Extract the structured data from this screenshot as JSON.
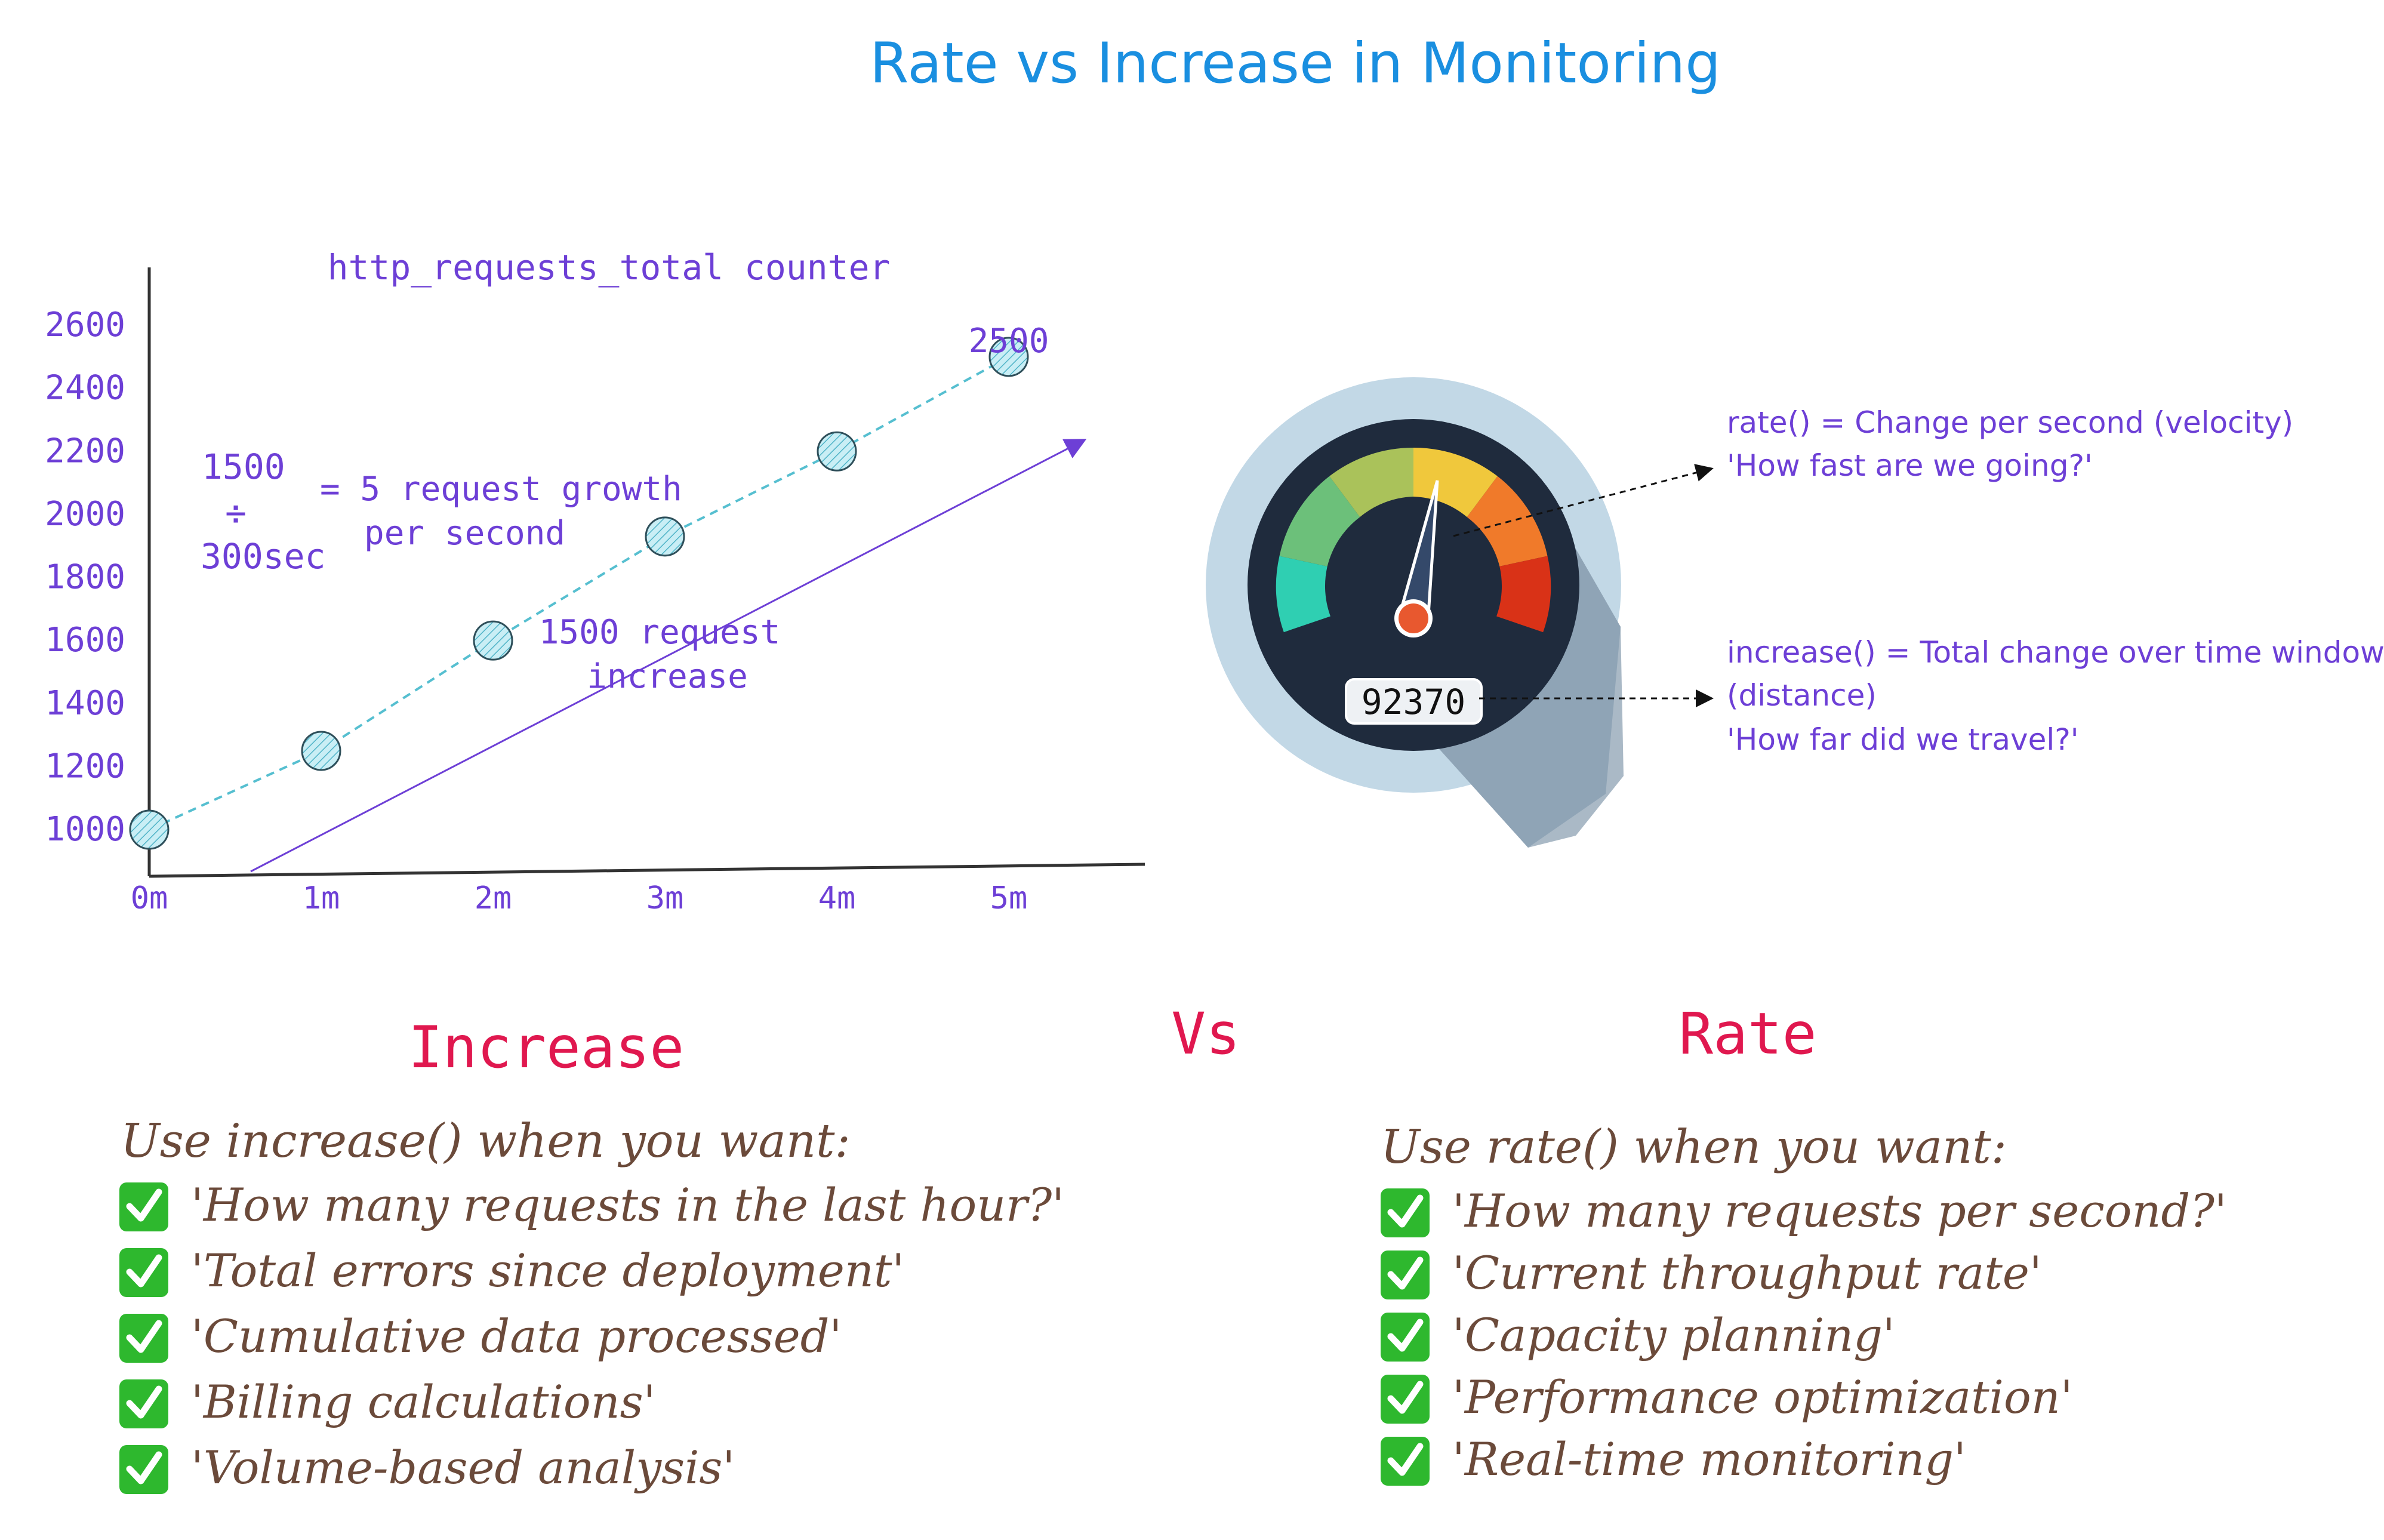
{
  "title": "Rate vs Increase in Monitoring",
  "colors": {
    "title": "#1a8fe0",
    "chart_text": "#6d3fd6",
    "points": "#7fd1e0",
    "trend": "#56bfd0",
    "heading": "#e0184f",
    "list_text": "#6b4a3a",
    "check_bg": "#2eb82e"
  },
  "chart_data": {
    "type": "scatter",
    "title": "http_requests_total counter",
    "x_ticks": [
      "0m",
      "1m",
      "2m",
      "3m",
      "4m",
      "5m"
    ],
    "y_ticks": [
      1000,
      1200,
      1400,
      1600,
      1800,
      2000,
      2200,
      2400,
      2600
    ],
    "xlim": [
      0,
      5
    ],
    "ylim": [
      1000,
      2600
    ],
    "series": [
      {
        "x": [
          0,
          1,
          2,
          3,
          4,
          5
        ],
        "y": [
          1000,
          1250,
          1600,
          1930,
          2200,
          2500
        ]
      }
    ],
    "point_label": "2500",
    "annotations": {
      "numerator": "1500",
      "denominator": "300sec",
      "rate_line1": "= 5 request growth",
      "rate_line2": "per second",
      "increase_line1": "1500 request",
      "increase_line2": "increase"
    }
  },
  "gauge": {
    "odometer": "92370",
    "rate_line1": "rate() = Change per second (velocity)",
    "rate_line2": "'How fast are we going?'",
    "increase_line1": "increase() = Total change over time window",
    "increase_line2": "(distance)",
    "increase_line3": "'How far did we travel?'"
  },
  "vs_label": "Vs",
  "increase_panel": {
    "heading": "Increase",
    "intro": "Use increase() when you want:",
    "items": [
      "'How many requests in the last hour?'",
      "'Total errors since deployment'",
      "'Cumulative data processed'",
      "'Billing calculations'",
      "'Volume-based analysis'"
    ]
  },
  "rate_panel": {
    "heading": "Rate",
    "intro": "Use rate() when you want:",
    "items": [
      "'How many requests per second?'",
      "'Current throughput rate'",
      "'Capacity planning'",
      "'Performance optimization'",
      "'Real-time monitoring'"
    ]
  }
}
